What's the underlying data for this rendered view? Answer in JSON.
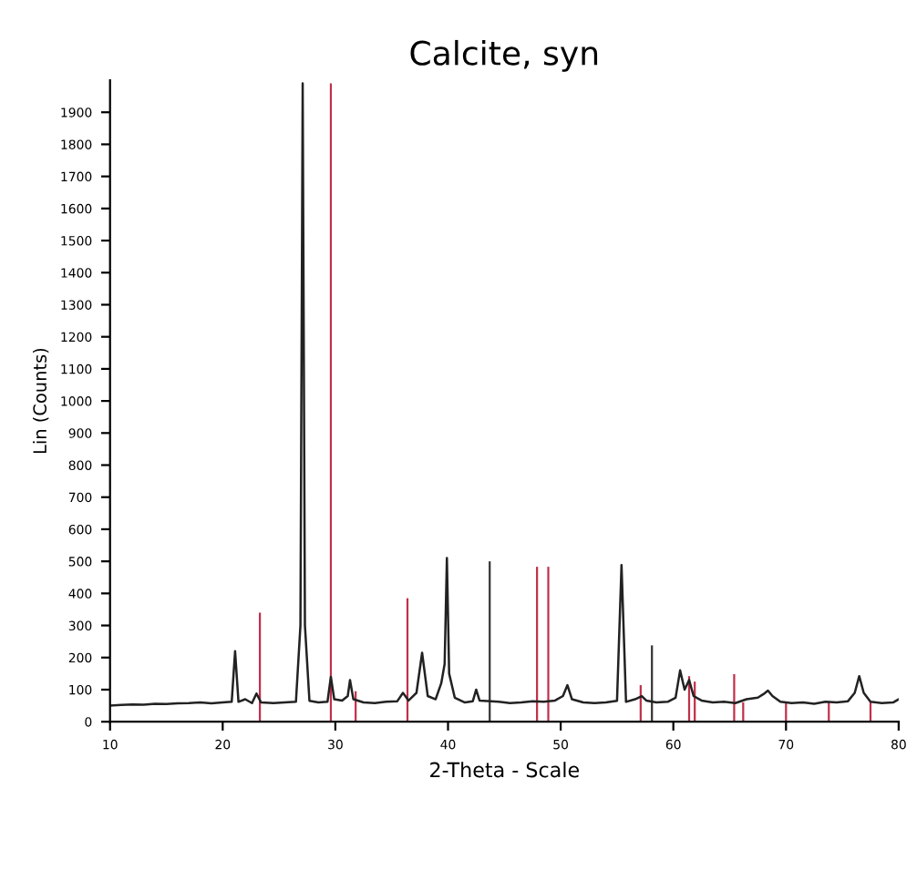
{
  "chart_data": {
    "type": "line",
    "title": "Calcite, syn",
    "xlabel": "2-Theta - Scale",
    "ylabel": "Lin (Counts)",
    "xlim": [
      10,
      80
    ],
    "xticks": [
      10,
      20,
      30,
      40,
      50,
      60,
      70,
      80
    ],
    "ylim": [
      0,
      2000
    ],
    "yticks": [
      0,
      100,
      200,
      300,
      400,
      500,
      600,
      700,
      800,
      900,
      1000,
      1100,
      1200,
      1300,
      1400,
      1500,
      1600,
      1700,
      1800,
      1900
    ],
    "grid": false,
    "legend": false,
    "series": [
      {
        "color": "#222222",
        "x": [
          10,
          11,
          12,
          13,
          14,
          15,
          16,
          17,
          18,
          19,
          20,
          20.8,
          21.1,
          21.4,
          22,
          22.6,
          23.0,
          23.4,
          24.5,
          25.5,
          26.5,
          26.9,
          27.1,
          27.3,
          27.7,
          28.5,
          29.3,
          29.6,
          29.9,
          30.6,
          31.1,
          31.3,
          31.6,
          32.5,
          33.5,
          34.5,
          35.5,
          36.0,
          36.5,
          37.2,
          37.7,
          38.2,
          38.9,
          39.4,
          39.7,
          39.9,
          40.1,
          40.6,
          41.5,
          42.2,
          42.5,
          42.8,
          44.5,
          45.5,
          46.5,
          47.5,
          48.5,
          49.5,
          50.2,
          50.6,
          51.0,
          52,
          53,
          54,
          55.0,
          55.4,
          55.8,
          56.6,
          57.2,
          57.6,
          58.5,
          59.5,
          60.2,
          60.6,
          61.0,
          61.4,
          61.8,
          62.5,
          63.5,
          64.5,
          65.5,
          66.5,
          67.5,
          68.0,
          68.4,
          68.8,
          69.5,
          70.5,
          71.5,
          72.5,
          73.5,
          74.5,
          75.5,
          76.1,
          76.5,
          76.9,
          77.5,
          78.5,
          79.5,
          80
        ],
        "values": [
          50,
          52,
          54,
          53,
          56,
          55,
          57,
          58,
          60,
          57,
          60,
          62,
          220,
          62,
          70,
          58,
          88,
          60,
          58,
          60,
          62,
          300,
          1990,
          300,
          65,
          60,
          62,
          140,
          70,
          66,
          80,
          130,
          70,
          60,
          58,
          62,
          64,
          90,
          66,
          90,
          215,
          80,
          70,
          120,
          180,
          510,
          150,
          75,
          60,
          64,
          100,
          66,
          62,
          58,
          60,
          64,
          62,
          66,
          80,
          114,
          70,
          60,
          58,
          60,
          65,
          488,
          62,
          70,
          80,
          66,
          60,
          62,
          75,
          160,
          100,
          130,
          80,
          66,
          60,
          62,
          58,
          70,
          75,
          86,
          97,
          80,
          62,
          58,
          60,
          56,
          62,
          60,
          64,
          90,
          142,
          90,
          62,
          58,
          60,
          70
        ]
      },
      {
        "type": "bar",
        "color": "#c0304a",
        "x": [
          23.3,
          29.6,
          31.8,
          36.4,
          47.9,
          48.9,
          57.1,
          61.4,
          61.9,
          65.4,
          66.2,
          70.0,
          73.8,
          77.5
        ],
        "values": [
          340,
          1990,
          95,
          385,
          483,
          483,
          114,
          142,
          125,
          148,
          60,
          60,
          60,
          60
        ]
      },
      {
        "type": "bar",
        "color": "#333333",
        "x": [
          43.7,
          58.1
        ],
        "values": [
          500,
          238
        ]
      }
    ]
  }
}
